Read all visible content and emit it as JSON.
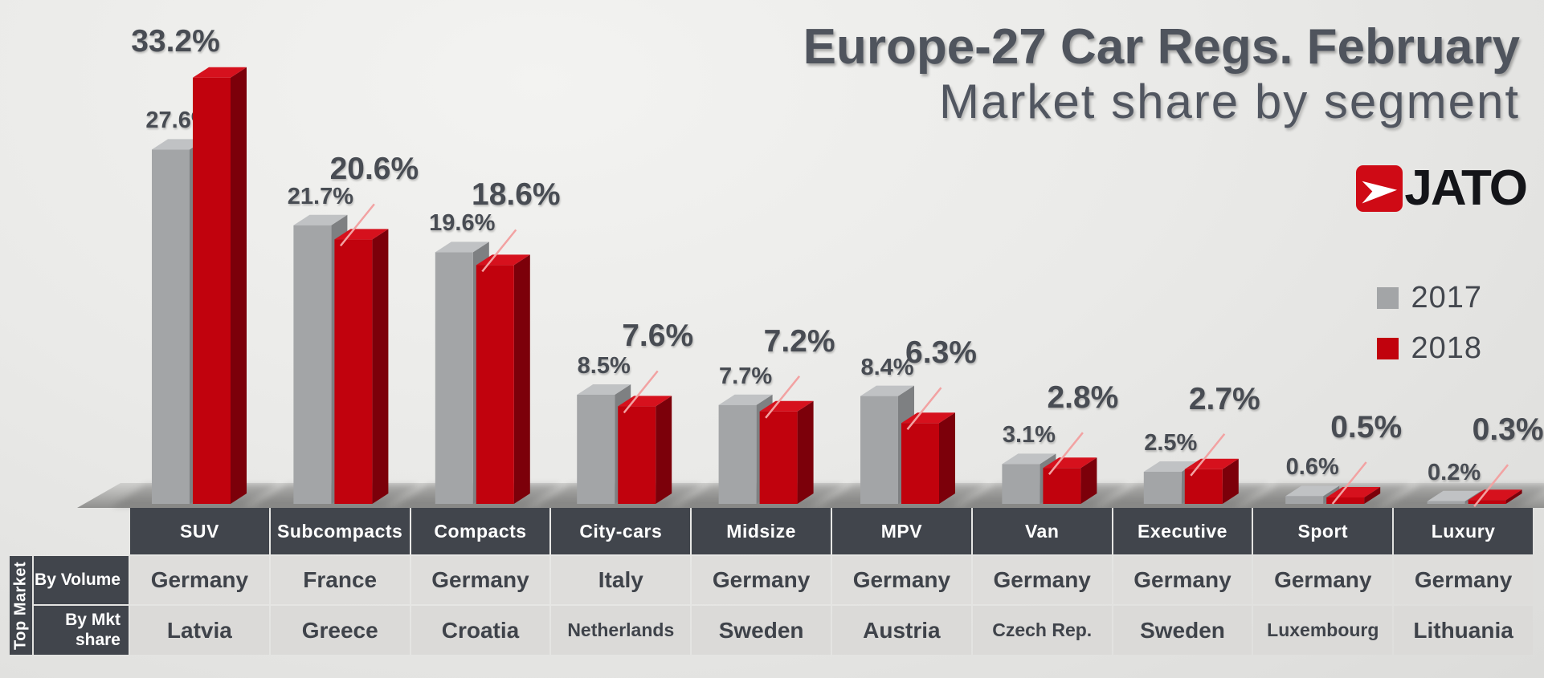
{
  "title": {
    "line1": "Europe-27 Car Regs. February",
    "line2": "Market share by segment"
  },
  "logo": {
    "text": "JATO",
    "box_color": "#cf0a15",
    "arrow_icon": "jato-arrow"
  },
  "legend": [
    {
      "label": "2017",
      "color": "#a3a5a7"
    },
    {
      "label": "2018",
      "color": "#c1020d"
    }
  ],
  "chart_data": {
    "type": "bar",
    "title": "Europe-27 Car Regs. February — Market share by segment",
    "categories": [
      "SUV",
      "Subcompacts",
      "Compacts",
      "City-cars",
      "Midsize",
      "MPV",
      "Van",
      "Executive",
      "Sport",
      "Luxury"
    ],
    "series": [
      {
        "name": "2017",
        "color": "#a3a5a7",
        "values": [
          27.6,
          21.7,
          19.6,
          8.5,
          7.7,
          8.4,
          3.1,
          2.5,
          0.6,
          0.2
        ]
      },
      {
        "name": "2018",
        "color": "#c1020d",
        "values": [
          33.2,
          20.6,
          18.6,
          7.6,
          7.2,
          6.3,
          2.8,
          2.7,
          0.5,
          0.3
        ]
      }
    ],
    "value_suffix": "%",
    "ylim": [
      0,
      35
    ],
    "grid": false,
    "legend_position": "right",
    "style": "3d-columns",
    "leader_line_color": "#f2a2a2"
  },
  "table": {
    "corner_label": "Top Market",
    "row_labels": [
      "By Volume",
      "By Mkt share"
    ],
    "columns": [
      "SUV",
      "Subcompacts",
      "Compacts",
      "City-cars",
      "Midsize",
      "MPV",
      "Van",
      "Executive",
      "Sport",
      "Luxury"
    ],
    "rows": {
      "by_volume": [
        "Germany",
        "France",
        "Germany",
        "Italy",
        "Germany",
        "Germany",
        "Germany",
        "Germany",
        "Germany",
        "Germany"
      ],
      "by_mkt_share": [
        "Latvia",
        "Greece",
        "Croatia",
        "Netherlands",
        "Sweden",
        "Austria",
        "Czech Rep.",
        "Sweden",
        "Luxembourg",
        "Lithuania"
      ]
    }
  }
}
